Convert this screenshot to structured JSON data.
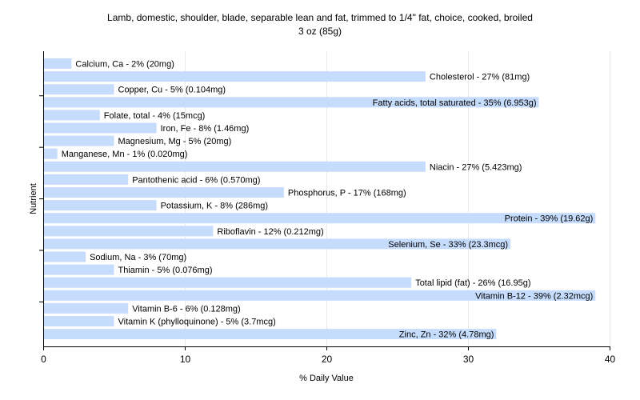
{
  "chart_data": {
    "type": "bar",
    "orientation": "horizontal",
    "title": "Lamb, domestic, shoulder, blade, separable lean and fat, trimmed to 1/4\" fat, choice, cooked, broiled",
    "subtitle": "3 oz (85g)",
    "xlabel": "% Daily Value",
    "ylabel": "Nutrient",
    "xlim": [
      0,
      40
    ],
    "xticks": [
      "0",
      "10",
      "20",
      "30",
      "40"
    ],
    "grid": "vertical",
    "bar_color": "#c6dcfc",
    "categories": [
      "Calcium, Ca",
      "Cholesterol",
      "Copper, Cu",
      "Fatty acids, total saturated",
      "Folate, total",
      "Iron, Fe",
      "Magnesium, Mg",
      "Manganese, Mn",
      "Niacin",
      "Pantothenic acid",
      "Phosphorus, P",
      "Potassium, K",
      "Protein",
      "Riboflavin",
      "Selenium, Se",
      "Sodium, Na",
      "Thiamin",
      "Total lipid (fat)",
      "Vitamin B-12",
      "Vitamin B-6",
      "Vitamin K (phylloquinone)",
      "Zinc, Zn"
    ],
    "values": [
      2,
      27,
      5,
      35,
      4,
      8,
      5,
      1,
      27,
      6,
      17,
      8,
      39,
      12,
      33,
      3,
      5,
      26,
      39,
      6,
      5,
      32
    ],
    "labels": [
      "Calcium, Ca - 2% (20mg)",
      "Cholesterol - 27% (81mg)",
      "Copper, Cu - 5% (0.104mg)",
      "Fatty acids, total saturated - 35% (6.953g)",
      "Folate, total - 4% (15mcg)",
      "Iron, Fe - 8% (1.46mg)",
      "Magnesium, Mg - 5% (20mg)",
      "Manganese, Mn - 1% (0.020mg)",
      "Niacin - 27% (5.423mg)",
      "Pantothenic acid - 6% (0.570mg)",
      "Phosphorus, P - 17% (168mg)",
      "Potassium, K - 8% (286mg)",
      "Protein - 39% (19.62g)",
      "Riboflavin - 12% (0.212mg)",
      "Selenium, Se - 33% (23.3mcg)",
      "Sodium, Na - 3% (70mg)",
      "Thiamin - 5% (0.076mg)",
      "Total lipid (fat) - 26% (16.95g)",
      "Vitamin B-12 - 39% (2.32mcg)",
      "Vitamin B-6 - 6% (0.128mg)",
      "Vitamin K (phylloquinone) - 5% (3.7mcg)",
      "Zinc, Zn - 32% (4.78mg)"
    ]
  }
}
